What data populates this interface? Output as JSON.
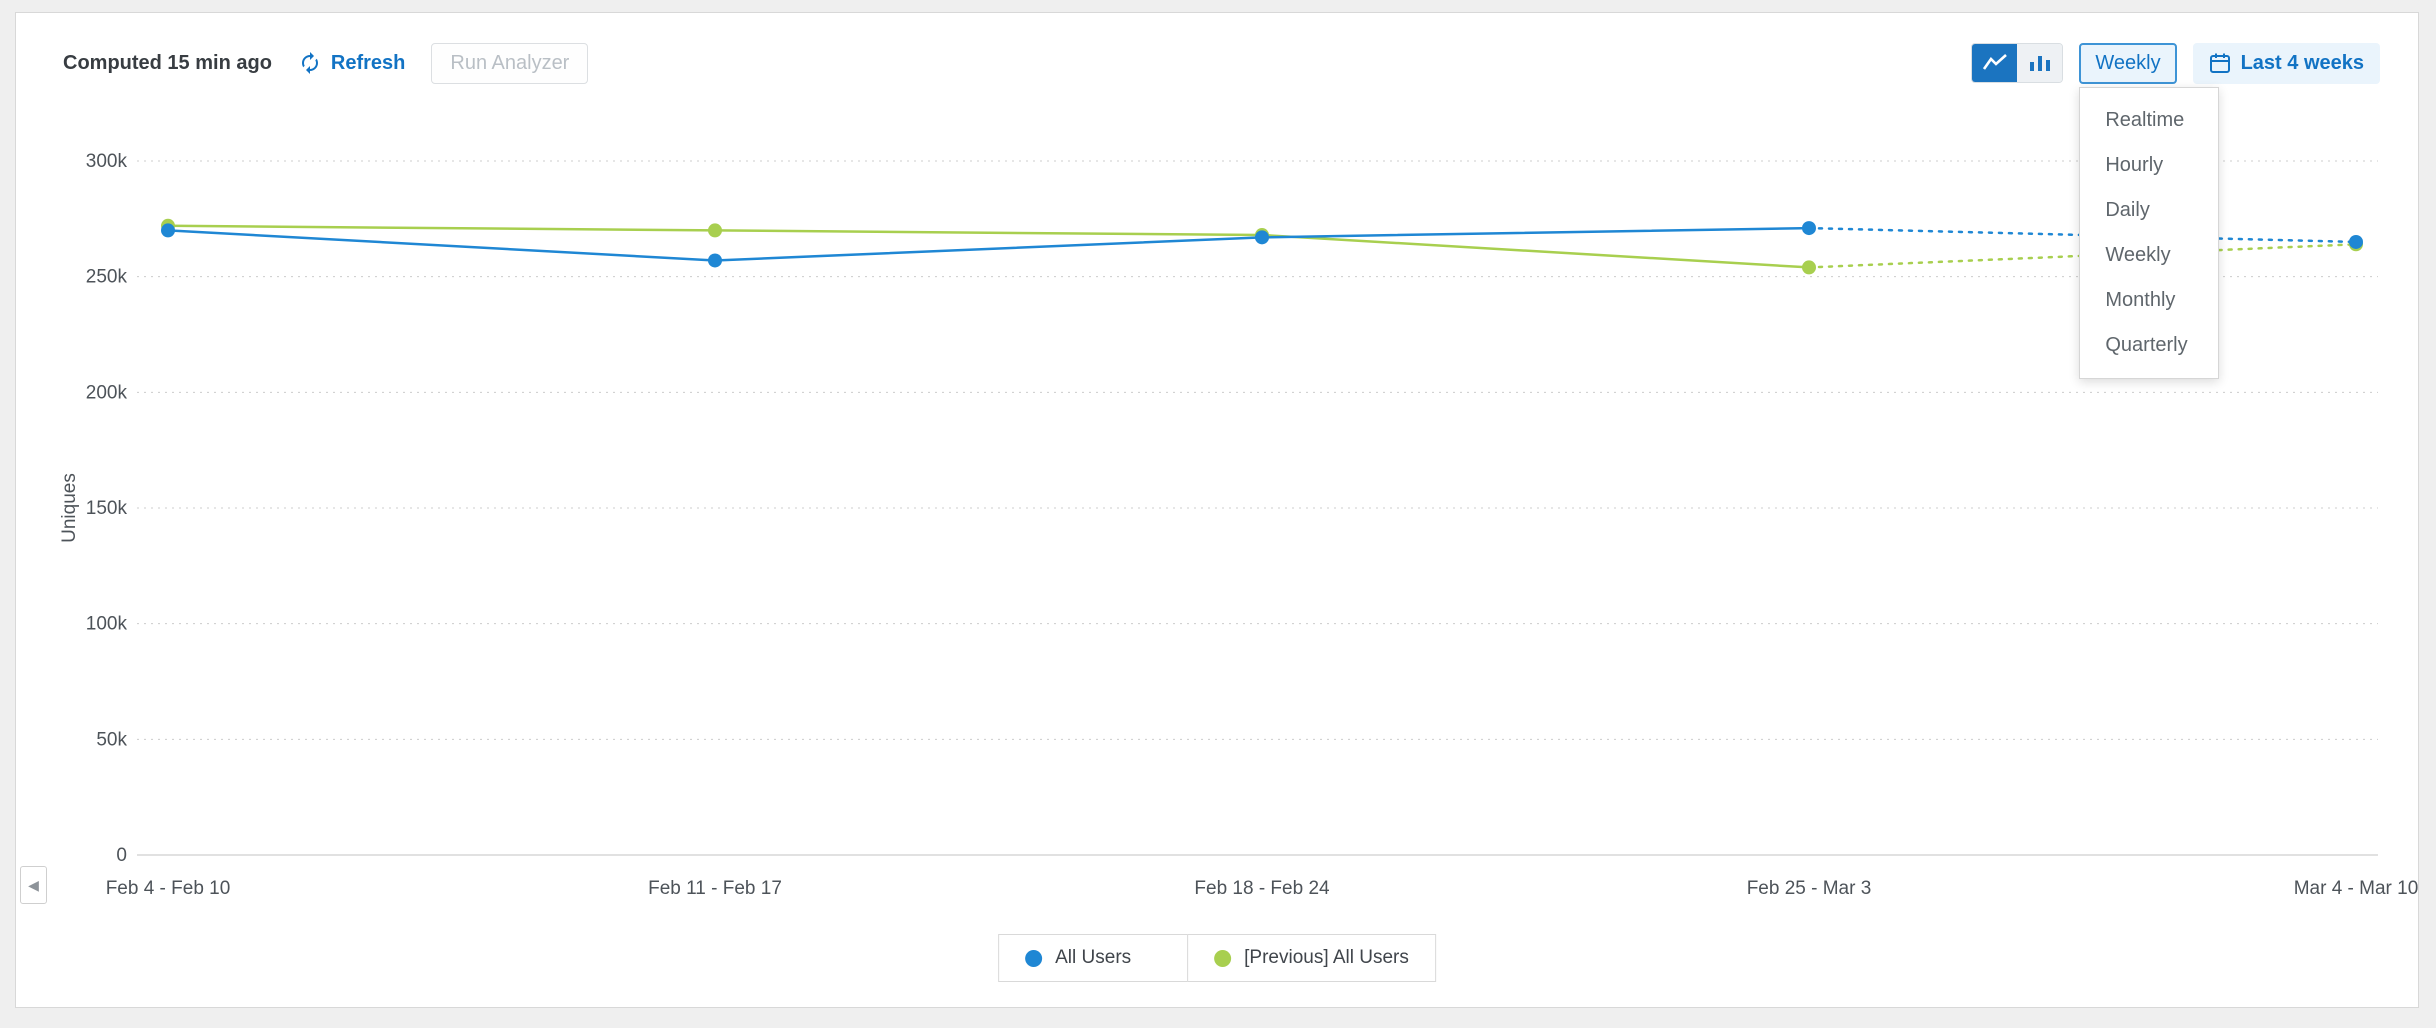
{
  "header": {
    "computed_label": "Computed 15 min ago",
    "refresh_label": "Refresh",
    "run_analyzer_label": "Run Analyzer"
  },
  "toolbar": {
    "interval_selected": "Weekly",
    "date_range_label": "Last 4 weeks",
    "interval_options": [
      "Realtime",
      "Hourly",
      "Daily",
      "Weekly",
      "Monthly",
      "Quarterly"
    ],
    "chart_type_icons": [
      "line-chart",
      "bar-chart"
    ],
    "active_chart_type": "line"
  },
  "chart_data": {
    "type": "line",
    "title": "",
    "xlabel": "",
    "ylabel": "Uniques",
    "x_categories": [
      "Feb 4 - Feb 10",
      "Feb 11 - Feb 17",
      "Feb 18 - Feb 24",
      "Feb 25 - Mar 3",
      "Mar 4 - Mar 10"
    ],
    "y_ticks": [
      {
        "label": "300k",
        "value": 300000
      },
      {
        "label": "250k",
        "value": 250000
      },
      {
        "label": "200k",
        "value": 200000
      },
      {
        "label": "150k",
        "value": 150000
      },
      {
        "label": "100k",
        "value": 100000
      },
      {
        "label": "50k",
        "value": 50000
      },
      {
        "label": "0",
        "value": 0
      }
    ],
    "y_max": 300000,
    "ylim": [
      0,
      300000
    ],
    "grid": "horizontal-dotted",
    "legend_position": "bottom",
    "series": [
      {
        "name": "All Users",
        "color": "#1f87d4",
        "values": [
          270000,
          257000,
          267000,
          271000,
          265000
        ],
        "dashed_from_index": 3
      },
      {
        "name": "[Previous] All Users",
        "color": "#a8cf4f",
        "values": [
          272000,
          270000,
          268000,
          254000,
          264000
        ],
        "dashed_from_index": 3
      }
    ]
  },
  "legend": {
    "items": [
      {
        "label": "All Users",
        "color": "#1f87d4"
      },
      {
        "label": "[Previous] All Users",
        "color": "#a8cf4f"
      }
    ]
  },
  "colors": {
    "accent_blue": "#1273c4",
    "light_blue_bg": "#eaf4fc",
    "line_blue": "#1f87d4",
    "line_green": "#a8cf4f",
    "grid_gray": "#c9c9c9"
  }
}
